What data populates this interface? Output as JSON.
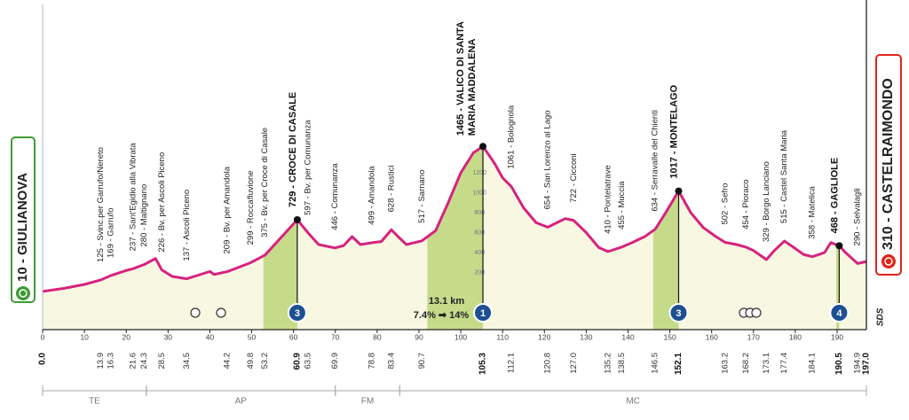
{
  "chart_data": {
    "type": "area",
    "color": "#d6237f",
    "fill_color": "#f8f7e2",
    "climb_color": "#c5db8a",
    "xlim": [
      0,
      197
    ],
    "ylim": [
      0,
      1400
    ],
    "xticks": [
      0,
      10,
      20,
      30,
      40,
      50,
      60,
      70,
      80,
      90,
      100,
      110,
      120,
      130,
      140,
      150,
      160,
      170,
      180,
      190
    ],
    "yticks": [
      200,
      400,
      600,
      800,
      1000,
      1200
    ],
    "x": [
      0,
      5,
      10,
      13.9,
      16.3,
      20,
      21.6,
      24.3,
      27,
      28.5,
      31,
      34.5,
      37,
      40,
      41,
      44.2,
      49.8,
      53.2,
      57,
      60.9,
      63.5,
      66,
      69.9,
      72,
      74,
      76,
      78.8,
      81,
      83.4,
      85,
      87,
      90.7,
      94,
      97,
      100,
      103,
      105.3,
      108,
      110,
      112.1,
      115,
      118,
      120.8,
      123,
      125,
      127,
      130,
      133,
      135.2,
      138.5,
      141,
      144,
      146.5,
      149,
      152.1,
      155,
      158,
      161,
      163.2,
      166,
      168.2,
      170,
      173.1,
      175,
      177.4,
      180,
      182,
      184.1,
      187,
      188.5,
      190.5,
      192,
      194.9,
      197
    ],
    "values": [
      10,
      40,
      80,
      125,
      169,
      220,
      237,
      280,
      340,
      226,
      160,
      137,
      170,
      210,
      180,
      209,
      299,
      375,
      550,
      729,
      597,
      480,
      446,
      470,
      560,
      480,
      499,
      510,
      628,
      560,
      480,
      517,
      620,
      900,
      1200,
      1400,
      1465,
      1300,
      1150,
      1061,
      850,
      700,
      654,
      700,
      740,
      722,
      600,
      450,
      410,
      455,
      500,
      560,
      634,
      800,
      1017,
      800,
      650,
      560,
      502,
      480,
      454,
      420,
      329,
      420,
      515,
      440,
      380,
      358,
      400,
      500,
      468,
      400,
      290,
      310
    ],
    "start": {
      "km": {
        "value": 0,
        "label": "0.0"
      },
      "label": "10 - GIULIANOVA"
    },
    "finish": {
      "km": {
        "value": 197,
        "label": "197.0"
      },
      "label": "310 - CASTELRAIMONDO"
    },
    "waypoints": [
      {
        "km": 13.9,
        "altitude": 125,
        "label": "125 - Svinc.per Garrufo/Nereto"
      },
      {
        "km": 16.3,
        "altitude": 169,
        "label": "169 - Garrufo"
      },
      {
        "km": 21.6,
        "altitude": 237,
        "label": "237 - Sant'Egidio alla Vibrata"
      },
      {
        "km": 24.3,
        "altitude": 280,
        "label": "280 - Maltignano"
      },
      {
        "km": 28.5,
        "altitude": 226,
        "label": "226 - Bv. per Ascoli Piceno"
      },
      {
        "km": 34.5,
        "altitude": 137,
        "label": "137 - Ascoli Piceno"
      },
      {
        "km": 44.2,
        "altitude": 209,
        "label": "209 - Bv. per Amandola"
      },
      {
        "km": 49.8,
        "altitude": 299,
        "label": "299 - Roccafluvione"
      },
      {
        "km": 53.2,
        "altitude": 375,
        "label": "375 - Bv. per Croce di Casale"
      },
      {
        "km": 60.9,
        "altitude": 729,
        "label": "729 - CROCE DI CASALE",
        "bold": true
      },
      {
        "km": 63.5,
        "altitude": 597,
        "label": "597 - Bv. per Comunanza"
      },
      {
        "km": 69.9,
        "altitude": 446,
        "label": "446 - Comunanza"
      },
      {
        "km": 78.8,
        "altitude": 499,
        "label": "499 - Amandola"
      },
      {
        "km": 83.4,
        "altitude": 628,
        "label": "628 - Rustici"
      },
      {
        "km": 90.7,
        "altitude": 517,
        "label": "517 - Sarnano"
      },
      {
        "km": 105.3,
        "altitude": 1465,
        "label": "1465 - VALICO DI SANTA",
        "label_2": "MARIA MADDALENA",
        "bold": true
      },
      {
        "km": 112.1,
        "altitude": 1061,
        "label": "1061 - Bolognola"
      },
      {
        "km": 120.8,
        "altitude": 654,
        "label": "654 - San Lorenzo al Lago"
      },
      {
        "km": {
          "value": 127,
          "label": "127.0"
        },
        "altitude": 722,
        "label": "722 - Cicconi"
      },
      {
        "km": 135.2,
        "altitude": 410,
        "label": "410 - Pontelatrave"
      },
      {
        "km": 138.5,
        "altitude": 455,
        "label": "455 - Muccia"
      },
      {
        "km": 146.5,
        "altitude": 634,
        "label": "634 - Serravalle del Chienti"
      },
      {
        "km": 152.1,
        "altitude": 1017,
        "label": "1017 - MONTELAGO",
        "bold": true
      },
      {
        "km": 163.2,
        "altitude": 502,
        "label": "502 - Sefro"
      },
      {
        "km": 168.2,
        "altitude": 454,
        "label": "454 - Pioraco"
      },
      {
        "km": 173.1,
        "altitude": 329,
        "label": "329 - Borgo Lanciano"
      },
      {
        "km": 177.4,
        "altitude": 515,
        "label": "515 - Castel Santa Maria"
      },
      {
        "km": 184.1,
        "altitude": 358,
        "label": "358 - Matelica"
      },
      {
        "km": 190.5,
        "altitude": 468,
        "label": "468 - GAGLIOLE",
        "bold": true
      },
      {
        "km": 194.9,
        "altitude": 290,
        "label": "290 - Selvalagli"
      }
    ],
    "climbs": [
      {
        "start": 52.8,
        "end": 60.9,
        "category": 3
      },
      {
        "start": 92,
        "end": 105.3,
        "category": 1
      },
      {
        "start": 146,
        "end": 152.1,
        "category": 3
      },
      {
        "start": 189.8,
        "end": 190.5,
        "category": 4
      }
    ],
    "annotations": [
      "13.1 km",
      "7.4% ➡ 14%"
    ],
    "regions": [
      {
        "name": "TE",
        "from": 0,
        "to": 24.8
      },
      {
        "name": "AP",
        "from": 24.8,
        "to": 70
      },
      {
        "name": "FM",
        "from": 70,
        "to": 85.4
      },
      {
        "name": "MC",
        "from": 85.4,
        "to": 197
      }
    ],
    "logo": "SDS"
  }
}
